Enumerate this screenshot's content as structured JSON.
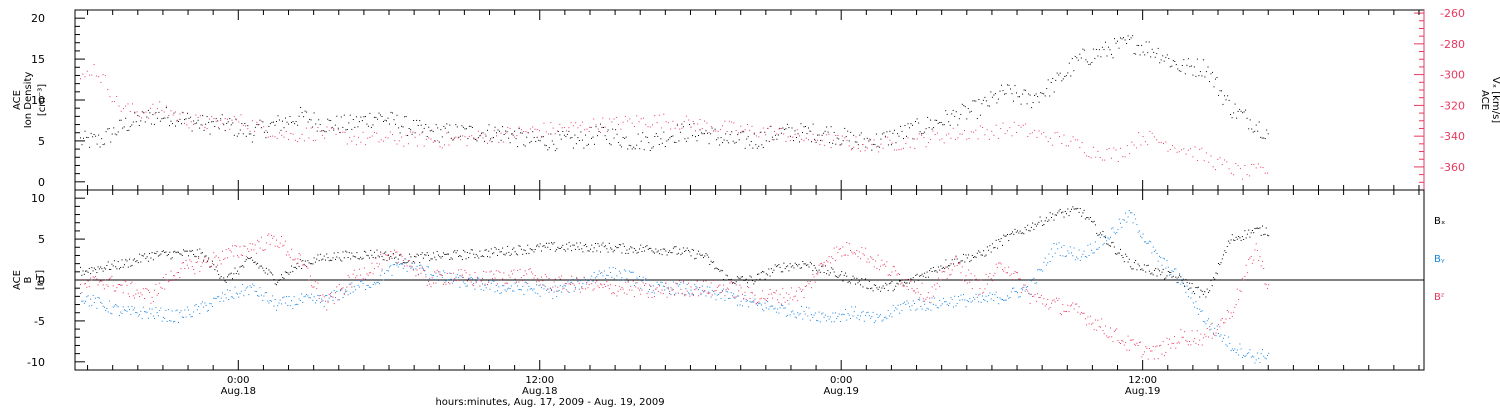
{
  "figure": {
    "time_label": "hours:minutes, Aug. 17, 2009 - Aug. 19, 2009",
    "x_ticks": [
      {
        "time": "0:00",
        "date": "Aug.18",
        "hours": 0
      },
      {
        "time": "12:00",
        "date": "Aug.18",
        "hours": 12
      },
      {
        "time": "0:00",
        "date": "Aug.19",
        "hours": 24
      },
      {
        "time": "12:00",
        "date": "Aug.19",
        "hours": 36
      }
    ],
    "x_range_hours": [
      -6.5,
      47.2
    ],
    "minor_tick_hours": 1
  },
  "colors": {
    "black": "#000000",
    "pink": "#e8385f",
    "blue": "#1a84e0"
  },
  "chart_data": [
    {
      "type": "scatter",
      "panel": "top",
      "ylabel_left": [
        "ACE",
        "Ion Density",
        "[cm⁻³]"
      ],
      "ylabel_right": [
        "ACE",
        "Vₓ [km/s]"
      ],
      "ylim_left": [
        -1,
        21
      ],
      "yticks_left": [
        0,
        5,
        10,
        15,
        20
      ],
      "ylim_right": [
        -375,
        -258
      ],
      "yticks_right": [
        -260,
        -280,
        -300,
        -320,
        -340,
        -360
      ],
      "series": [
        {
          "axis": "left",
          "color": "black",
          "x": [
            -6.3,
            -5.5,
            -4.5,
            -3.5,
            -2.5,
            -1.5,
            -0.5,
            0.5,
            1.5,
            2.5,
            3.5,
            4.5,
            5.5,
            6.5,
            7.5,
            8.5,
            9.5,
            10.5,
            11.5,
            12.5,
            13.5,
            14.5,
            15.5,
            16.5,
            17.5,
            18.5,
            19.5,
            20.5,
            21.5,
            22.5,
            23.5,
            24.5,
            25.5,
            26.5,
            27.5,
            28.5,
            29.5,
            30.5,
            31.5,
            32.5,
            33.5,
            34.5,
            35.5,
            36.5,
            37.5,
            38.5,
            39.5,
            40.5,
            41.0
          ],
          "y": [
            5,
            5,
            7,
            8,
            8,
            7,
            7,
            6,
            7,
            8,
            7,
            7,
            8,
            7,
            6,
            6,
            6,
            6,
            5,
            5,
            5,
            6,
            5,
            5,
            6,
            6,
            5,
            5,
            6,
            6,
            6,
            5,
            5,
            6,
            7,
            8,
            9,
            11,
            10,
            12,
            15,
            16,
            17,
            16,
            14,
            14,
            9,
            7,
            6
          ]
        },
        {
          "axis": "right",
          "color": "pink",
          "x": [
            -6.3,
            -5.8,
            -5.3,
            -4.8,
            -4.0,
            -3.0,
            -2.0,
            -1.0,
            0.0,
            1.0,
            2.0,
            3.0,
            4.0,
            5.0,
            6.0,
            7.0,
            8.0,
            9.0,
            10.0,
            11.0,
            12.0,
            13.0,
            14.0,
            15.0,
            16.0,
            17.0,
            18.0,
            19.0,
            20.0,
            21.0,
            22.0,
            23.0,
            24.0,
            25.0,
            26.0,
            27.0,
            28.0,
            29.0,
            30.0,
            31.0,
            32.0,
            33.0,
            34.0,
            35.0,
            36.0,
            37.0,
            38.0,
            39.0,
            40.0,
            41.0
          ],
          "y": [
            -305,
            -295,
            -305,
            -320,
            -325,
            -322,
            -330,
            -332,
            -330,
            -335,
            -340,
            -338,
            -340,
            -342,
            -342,
            -342,
            -343,
            -342,
            -340,
            -338,
            -336,
            -335,
            -333,
            -332,
            -330,
            -330,
            -332,
            -334,
            -336,
            -337,
            -340,
            -342,
            -344,
            -346,
            -345,
            -343,
            -340,
            -338,
            -337,
            -335,
            -340,
            -343,
            -350,
            -352,
            -340,
            -345,
            -350,
            -358,
            -364,
            -362
          ]
        }
      ]
    },
    {
      "type": "scatter",
      "panel": "bottom",
      "ylabel_left": [
        "ACE",
        "B",
        "[nT]"
      ],
      "ylim": [
        -11,
        11
      ],
      "yticks": [
        -10,
        -5,
        0,
        5,
        10
      ],
      "zero_line": true,
      "series": [
        {
          "name": "Bₓ",
          "color": "black",
          "x": [
            -6.3,
            -5.5,
            -4.5,
            -3.5,
            -2.5,
            -1.5,
            -0.5,
            0.5,
            1.5,
            2.5,
            3.5,
            4.5,
            5.5,
            6.5,
            7.5,
            8.5,
            9.5,
            10.5,
            11.5,
            12.5,
            13.5,
            14.5,
            15.5,
            16.5,
            17.5,
            18.5,
            19.5,
            20.5,
            21.5,
            22.5,
            23.5,
            24.5,
            25.5,
            26.5,
            27.5,
            28.5,
            29.5,
            30.5,
            31.5,
            32.5,
            33.5,
            34.5,
            35.5,
            36.5,
            37.5,
            38.5,
            39.5,
            40.5,
            41.0
          ],
          "y": [
            1,
            1.5,
            2,
            3,
            3.2,
            3.2,
            0,
            2.5,
            0,
            2,
            2.8,
            3,
            3.2,
            2.5,
            2.8,
            3,
            3.2,
            3.5,
            3.8,
            4,
            4,
            4,
            3.8,
            3.8,
            3.5,
            3,
            0,
            0,
            1.5,
            2,
            1,
            0,
            -1,
            -0.5,
            1,
            2.5,
            3,
            5,
            6.5,
            8,
            8.5,
            5,
            2,
            1,
            0,
            -2,
            5,
            6,
            6
          ]
        },
        {
          "name": "Bᵧ",
          "color": "blue",
          "x": [
            -6.3,
            -5.5,
            -4.5,
            -3.5,
            -2.5,
            -1.5,
            -0.5,
            0.5,
            1.5,
            2.5,
            3.5,
            4.5,
            5.5,
            6.5,
            7.5,
            8.5,
            9.5,
            10.5,
            11.5,
            12.5,
            13.5,
            14.5,
            15.5,
            16.5,
            17.5,
            18.5,
            19.5,
            20.5,
            21.5,
            22.5,
            23.5,
            24.5,
            25.5,
            26.5,
            27.5,
            28.5,
            29.5,
            30.5,
            31.5,
            32.5,
            33.5,
            34.5,
            35.5,
            36.5,
            37.5,
            38.5,
            39.5,
            40.5,
            41.0
          ],
          "y": [
            -2,
            -3,
            -4,
            -4,
            -4.5,
            -3.5,
            -2,
            -1,
            -3,
            -2.5,
            -2.5,
            -1,
            0,
            2,
            1,
            0,
            -0.5,
            -1,
            -1,
            -1.5,
            -0.5,
            1,
            0.5,
            -1,
            -1,
            -1.5,
            -2,
            -3,
            -3.5,
            -4,
            -4.5,
            -4,
            -5,
            -3,
            -3,
            -2.5,
            -2.5,
            -2,
            -1,
            4,
            3,
            5,
            8,
            3,
            0,
            -5,
            -8,
            -9.5,
            -9
          ]
        },
        {
          "name": "Bᶻ",
          "color": "pink",
          "x": [
            -6.3,
            -5.5,
            -4.5,
            -3.5,
            -2.5,
            -1.5,
            -0.5,
            0.5,
            1.5,
            2.5,
            3.5,
            4.5,
            5.5,
            6.5,
            7.5,
            8.5,
            9.5,
            10.5,
            11.5,
            12.5,
            13.5,
            14.5,
            15.5,
            16.5,
            17.5,
            18.5,
            19.5,
            20.5,
            21.5,
            22.5,
            23.5,
            24.5,
            25.5,
            26.5,
            27.5,
            28.5,
            29.5,
            30.5,
            31.5,
            32.5,
            33.5,
            34.5,
            35.5,
            36.5,
            37.5,
            38.5,
            39.5,
            40.5,
            41.0
          ],
          "y": [
            -1,
            0,
            -1,
            -2,
            1,
            2,
            3,
            4,
            5,
            2,
            -3,
            0,
            2,
            3,
            0,
            0.5,
            0,
            0.5,
            0.5,
            -0.5,
            -0.5,
            -1,
            -1,
            -1.5,
            -1,
            -1,
            -1,
            -2,
            -2,
            -1.5,
            3,
            4,
            2,
            0,
            -2,
            2,
            -1,
            2,
            -2,
            -3,
            -4,
            -6,
            -8,
            -9,
            -7,
            -7,
            -4,
            4,
            -1
          ]
        }
      ]
    }
  ]
}
